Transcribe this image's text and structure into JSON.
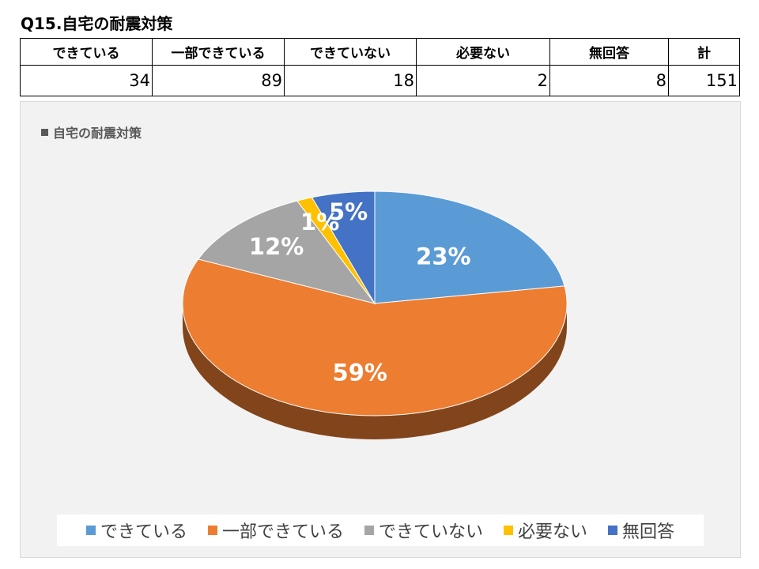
{
  "page_title": "Q15.自宅の耐震対策",
  "table": {
    "headers": [
      "できている",
      "一部できている",
      "できていない",
      "必要ない",
      "無回答",
      "計"
    ],
    "values": [
      "34",
      "89",
      "18",
      "2",
      "8",
      "151"
    ]
  },
  "chart_data": {
    "type": "pie",
    "title": "自宅の耐震対策",
    "categories": [
      "できている",
      "一部できている",
      "できていない",
      "必要ない",
      "無回答"
    ],
    "values": [
      34,
      89,
      18,
      2,
      8
    ],
    "data_labels": [
      "23%",
      "59%",
      "12%",
      "1%",
      "5%"
    ],
    "colors": [
      "#5B9BD5",
      "#ED7D31",
      "#A5A5A5",
      "#FFC000",
      "#4472C4"
    ],
    "start_angle": "12 o'clock, clockwise",
    "three_d": true,
    "legend_position": "bottom"
  }
}
